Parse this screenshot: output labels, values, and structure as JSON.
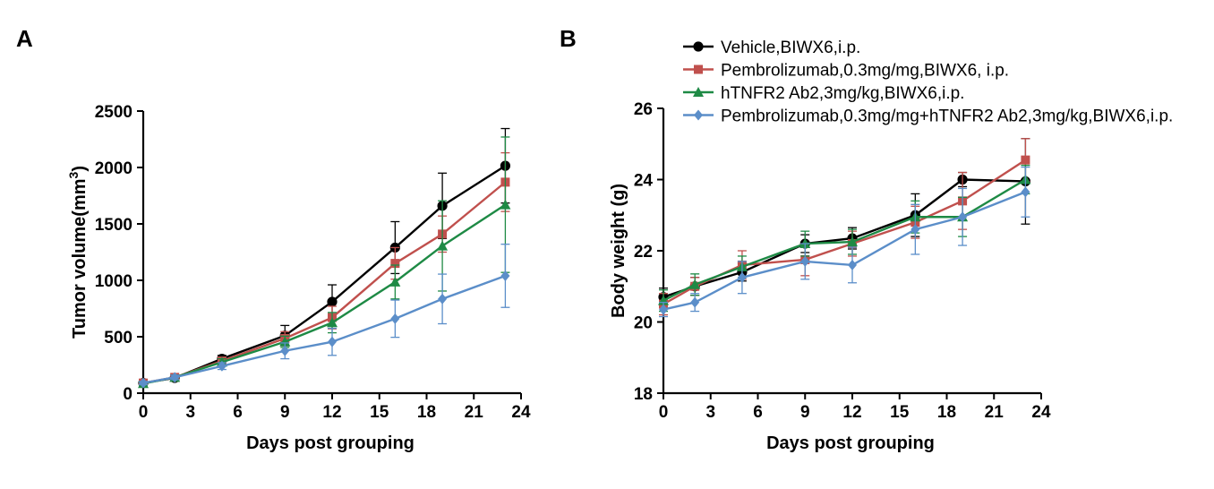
{
  "figure": {
    "panels": [
      {
        "letter": "A"
      },
      {
        "letter": "B"
      }
    ]
  },
  "legend": [
    {
      "label": "Vehicle,BIWX6,i.p.",
      "color": "#000000",
      "marker": "circle"
    },
    {
      "label": "Pembrolizumab,0.3mg/mg,BIWX6, i.p.",
      "color": "#c0504d",
      "marker": "square"
    },
    {
      "label": "hTNFR2 Ab2,3mg/kg,BIWX6,i.p.",
      "color": "#1e8a45",
      "marker": "triangle"
    },
    {
      "label": "Pembrolizumab,0.3mg/mg+hTNFR2 Ab2,3mg/kg,BIWX6,i.p.",
      "color": "#5b8ec9",
      "marker": "diamond"
    }
  ],
  "chart_data": [
    {
      "type": "line",
      "panel": "A",
      "xlabel": "Days post grouping",
      "ylabel": "Tumor volume(mm",
      "ylabel_superscript": "3",
      "ylabel_close": ")",
      "xlim": [
        0,
        24
      ],
      "ylim": [
        0,
        2500
      ],
      "xticks": [
        0,
        3,
        6,
        9,
        12,
        15,
        18,
        21,
        24
      ],
      "yticks": [
        0,
        500,
        1000,
        1500,
        2000,
        2500
      ],
      "grid": false,
      "series": [
        {
          "name": "Vehicle,BIWX6,i.p.",
          "color": "#000000",
          "marker": "circle",
          "x": [
            0,
            2,
            5,
            9,
            12,
            16,
            19,
            23
          ],
          "y": [
            90,
            135,
            305,
            510,
            810,
            1290,
            1660,
            2015
          ],
          "err": [
            15,
            20,
            30,
            90,
            150,
            230,
            290,
            330
          ]
        },
        {
          "name": "Pembrolizumab,0.3mg/mg,BIWX6, i.p.",
          "color": "#c0504d",
          "marker": "square",
          "x": [
            0,
            2,
            5,
            9,
            12,
            16,
            19,
            23
          ],
          "y": [
            90,
            140,
            285,
            485,
            670,
            1150,
            1410,
            1870
          ],
          "err": [
            15,
            20,
            30,
            60,
            100,
            140,
            160,
            260
          ]
        },
        {
          "name": "hTNFR2 Ab2,3mg/kg,BIWX6,i.p.",
          "color": "#1e8a45",
          "marker": "triangle",
          "x": [
            0,
            2,
            5,
            9,
            12,
            16,
            19,
            23
          ],
          "y": [
            85,
            140,
            275,
            455,
            625,
            985,
            1305,
            1670
          ],
          "err": [
            15,
            20,
            30,
            50,
            90,
            150,
            400,
            600
          ]
        },
        {
          "name": "Pembrolizumab,0.3mg/mg+hTNFR2 Ab2,3mg/kg,BIWX6,i.p.",
          "color": "#5b8ec9",
          "marker": "diamond",
          "x": [
            0,
            2,
            5,
            9,
            12,
            16,
            19,
            23
          ],
          "y": [
            90,
            140,
            240,
            375,
            455,
            660,
            835,
            1040
          ],
          "err": [
            15,
            20,
            30,
            70,
            120,
            165,
            220,
            280
          ]
        }
      ]
    },
    {
      "type": "line",
      "panel": "B",
      "xlabel": "Days post grouping",
      "ylabel": "Body weight (g)",
      "xlim": [
        0,
        24
      ],
      "ylim": [
        18,
        26
      ],
      "xticks": [
        0,
        3,
        6,
        9,
        12,
        15,
        18,
        21,
        24
      ],
      "yticks": [
        18,
        20,
        22,
        24,
        26
      ],
      "grid": false,
      "legend_position": "top",
      "series": [
        {
          "name": "Vehicle,BIWX6,i.p.",
          "color": "#000000",
          "marker": "circle",
          "x": [
            0,
            2,
            5,
            9,
            12,
            16,
            19,
            23
          ],
          "y": [
            20.7,
            21.0,
            21.4,
            22.2,
            22.35,
            23.0,
            24.0,
            23.95
          ],
          "err": [
            0.25,
            0.25,
            0.25,
            0.25,
            0.3,
            0.6,
            0.2,
            1.2
          ]
        },
        {
          "name": "Pembrolizumab,0.3mg/mg,BIWX6, i.p.",
          "color": "#c0504d",
          "marker": "square",
          "x": [
            0,
            2,
            5,
            9,
            12,
            16,
            19,
            23
          ],
          "y": [
            20.5,
            21.0,
            21.6,
            21.75,
            22.2,
            22.8,
            23.4,
            24.55
          ],
          "err": [
            0.3,
            0.25,
            0.4,
            0.45,
            0.35,
            0.45,
            0.8,
            0.6
          ]
        },
        {
          "name": "hTNFR2 Ab2,3mg/kg,BIWX6,i.p.",
          "color": "#1e8a45",
          "marker": "triangle",
          "x": [
            0,
            2,
            5,
            9,
            12,
            16,
            19,
            23
          ],
          "y": [
            20.6,
            21.05,
            21.55,
            22.2,
            22.25,
            22.95,
            22.95,
            24.0
          ],
          "err": [
            0.3,
            0.3,
            0.3,
            0.35,
            0.35,
            0.45,
            0.55,
            0.4
          ]
        },
        {
          "name": "Pembrolizumab,0.3mg/mg+hTNFR2 Ab2,3mg/kg,BIWX6,i.p.",
          "color": "#5b8ec9",
          "marker": "diamond",
          "x": [
            0,
            2,
            5,
            9,
            12,
            16,
            19,
            23
          ],
          "y": [
            20.35,
            20.55,
            21.25,
            21.7,
            21.6,
            22.6,
            22.95,
            23.65
          ],
          "err": [
            0.2,
            0.25,
            0.45,
            0.5,
            0.5,
            0.7,
            0.8,
            0.7
          ]
        }
      ]
    }
  ]
}
